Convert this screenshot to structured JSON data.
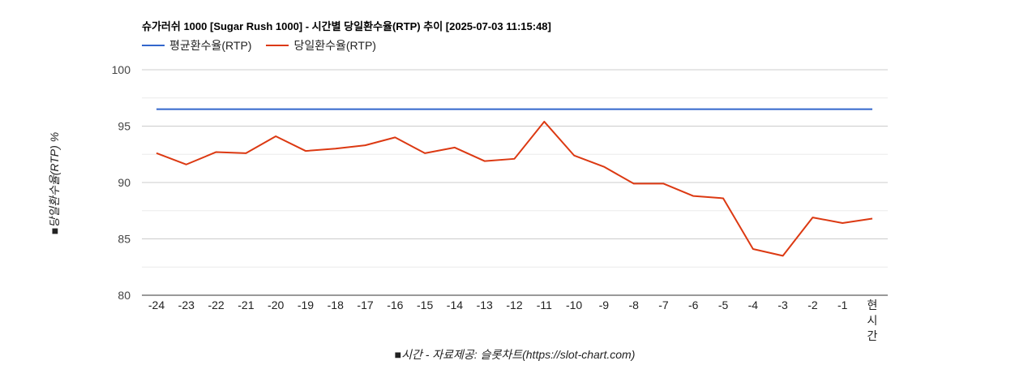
{
  "chart_data": {
    "type": "line",
    "title": "슈가러쉬 1000 [Sugar Rush 1000] - 시간별 당일환수율(RTP) 추이 [2025-07-03 11:15:48]",
    "categories": [
      "-24",
      "-23",
      "-22",
      "-21",
      "-20",
      "-19",
      "-18",
      "-17",
      "-16",
      "-15",
      "-14",
      "-13",
      "-12",
      "-11",
      "-10",
      "-9",
      "-8",
      "-7",
      "-6",
      "-5",
      "-4",
      "-3",
      "-2",
      "-1",
      "현\n시\n간"
    ],
    "series": [
      {
        "name": "평균환수율(RTP)",
        "color": "#3366cc",
        "values": [
          96.5,
          96.5,
          96.5,
          96.5,
          96.5,
          96.5,
          96.5,
          96.5,
          96.5,
          96.5,
          96.5,
          96.5,
          96.5,
          96.5,
          96.5,
          96.5,
          96.5,
          96.5,
          96.5,
          96.5,
          96.5,
          96.5,
          96.5,
          96.5,
          96.5
        ]
      },
      {
        "name": "당일환수율(RTP)",
        "color": "#dc3912",
        "values": [
          92.6,
          91.6,
          92.7,
          92.6,
          94.1,
          92.8,
          93.0,
          93.3,
          94.0,
          92.6,
          93.1,
          91.9,
          92.1,
          95.4,
          92.4,
          91.4,
          89.9,
          89.9,
          88.8,
          88.6,
          84.1,
          83.5,
          86.9,
          86.4,
          86.8
        ]
      }
    ],
    "ylabel": "■당일환수율(RTP) %",
    "xlabel": "■시간 - 자료제공: 슬롯차트(https://slot-chart.com)",
    "ylim": [
      80,
      100
    ],
    "yticks": [
      80,
      85,
      90,
      95,
      100
    ],
    "grid": true,
    "legend": "top-left"
  }
}
